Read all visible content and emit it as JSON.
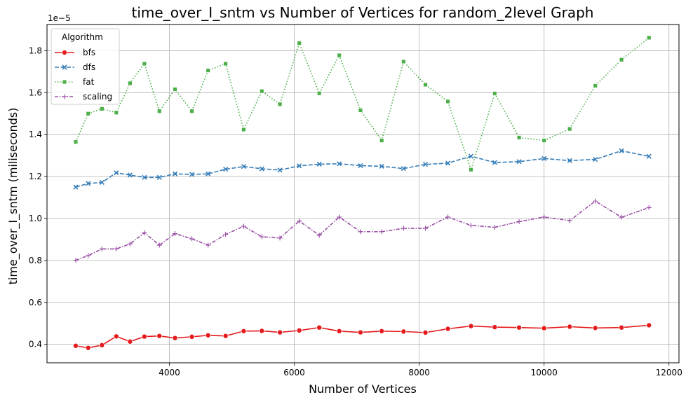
{
  "chart_data": {
    "type": "line",
    "title": "time_over_I_sntm vs Number of Vertices for random_2level Graph",
    "xlabel": "Number of Vertices",
    "ylabel": "time_over_I_sntm (miliseconds)",
    "y_offset_label": "1e−5",
    "xlim": [
      2040,
      12160
    ],
    "ylim": [
      0.312,
      1.925
    ],
    "y_scale_note": "values in units of 1e-5",
    "x_ticks": [
      4000,
      6000,
      8000,
      10000,
      12000
    ],
    "x_tick_labels": [
      "4000",
      "6000",
      "8000",
      "10000",
      "12000"
    ],
    "y_ticks": [
      0.4,
      0.6,
      0.8,
      1.0,
      1.2,
      1.4,
      1.6,
      1.8
    ],
    "y_tick_labels": [
      "0.4",
      "0.6",
      "0.8",
      "1.0",
      "1.2",
      "1.4",
      "1.6",
      "1.8"
    ],
    "grid": true,
    "legend": {
      "title": "Algorithm",
      "placement": "top-left"
    },
    "x": [
      2500,
      2700,
      2920,
      3150,
      3370,
      3600,
      3840,
      4090,
      4360,
      4620,
      4900,
      5190,
      5480,
      5770,
      6080,
      6400,
      6720,
      7060,
      7400,
      7750,
      8100,
      8460,
      8830,
      9210,
      9600,
      10000,
      10410,
      10820,
      11240,
      11680
    ],
    "series": [
      {
        "name": "bfs",
        "color": "#e41a1c",
        "marker": "circle",
        "dash": "solid",
        "values": [
          0.393,
          0.383,
          0.396,
          0.438,
          0.413,
          0.437,
          0.44,
          0.43,
          0.436,
          0.443,
          0.44,
          0.463,
          0.464,
          0.457,
          0.466,
          0.48,
          0.463,
          0.457,
          0.463,
          0.461,
          0.456,
          0.474,
          0.487,
          0.482,
          0.48,
          0.477,
          0.484,
          0.478,
          0.48,
          0.491
        ]
      },
      {
        "name": "dfs",
        "color": "#377eb8",
        "marker": "x",
        "dash": "dashed",
        "values": [
          1.15,
          1.167,
          1.172,
          1.218,
          1.207,
          1.196,
          1.196,
          1.213,
          1.21,
          1.213,
          1.235,
          1.248,
          1.237,
          1.231,
          1.251,
          1.259,
          1.261,
          1.252,
          1.249,
          1.238,
          1.258,
          1.264,
          1.297,
          1.267,
          1.271,
          1.286,
          1.276,
          1.282,
          1.323,
          1.296
        ]
      },
      {
        "name": "fat",
        "color": "#4daf4a",
        "marker": "square",
        "dash": "dotted",
        "values": [
          1.365,
          1.5,
          1.523,
          1.505,
          1.645,
          1.738,
          1.512,
          1.616,
          1.512,
          1.706,
          1.738,
          1.424,
          1.607,
          1.545,
          1.836,
          1.597,
          1.778,
          1.516,
          1.372,
          1.748,
          1.638,
          1.558,
          1.233,
          1.596,
          1.386,
          1.372,
          1.427,
          1.633,
          1.757,
          1.862
        ]
      },
      {
        "name": "scaling",
        "color": "#984ea3",
        "marker": "plus",
        "dash": "dashdot",
        "values": [
          0.801,
          0.823,
          0.855,
          0.855,
          0.879,
          0.932,
          0.873,
          0.928,
          0.903,
          0.873,
          0.924,
          0.963,
          0.913,
          0.907,
          0.988,
          0.92,
          1.007,
          0.937,
          0.937,
          0.953,
          0.953,
          1.007,
          0.967,
          0.958,
          0.985,
          1.007,
          0.99,
          1.083,
          1.006,
          1.052
        ]
      }
    ]
  }
}
